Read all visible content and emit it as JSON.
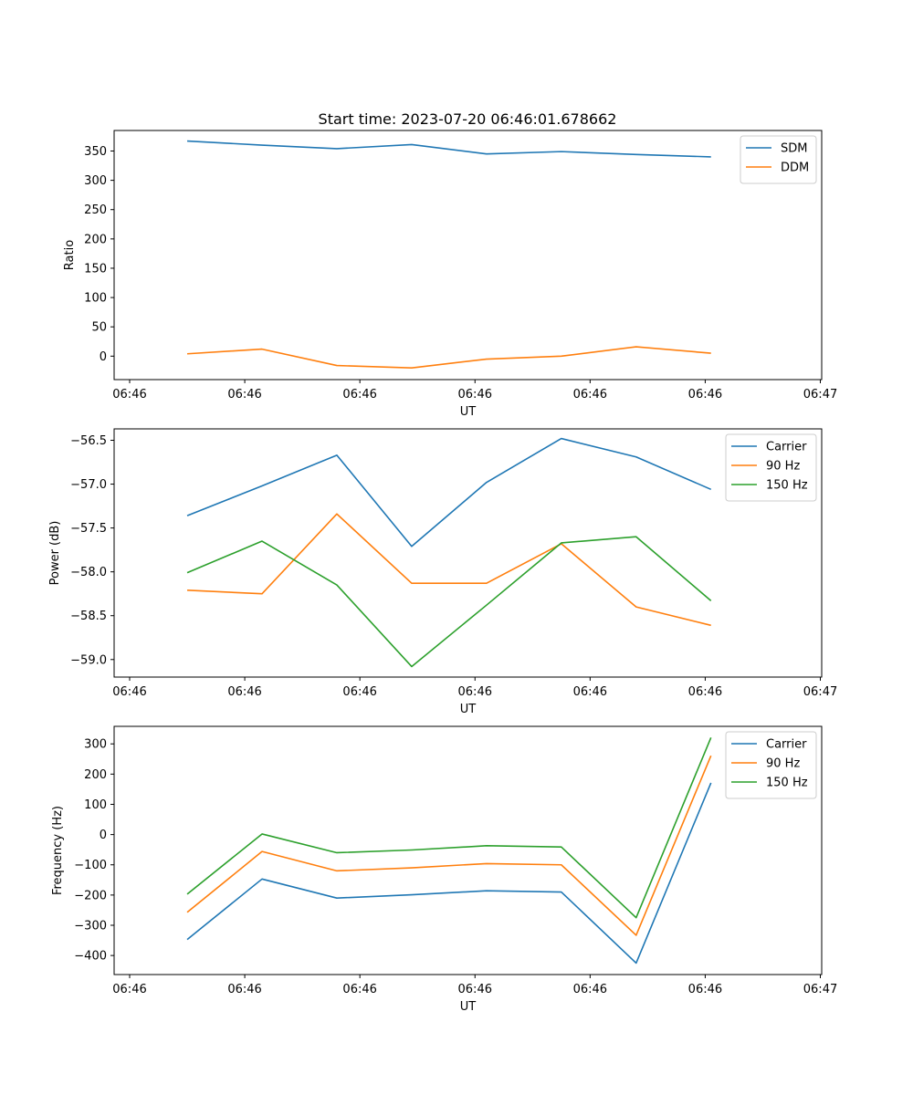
{
  "figure_title": "Start time: 2023-07-20 06:46:01.678662",
  "chart_data": [
    {
      "type": "line",
      "title": "Start time: 2023-07-20 06:46:01.678662",
      "xlabel": "UT",
      "ylabel": "Ratio",
      "x_ticks": [
        "06:46",
        "06:46",
        "06:46",
        "06:46",
        "06:46",
        "06:46",
        "06:47"
      ],
      "x": [
        0.5,
        1.15,
        1.8,
        2.45,
        3.1,
        3.75,
        4.4,
        5.05
      ],
      "xlim": [
        0,
        6
      ],
      "ylim": [
        -40,
        385
      ],
      "y_ticks": [
        0,
        50,
        100,
        150,
        200,
        250,
        300,
        350
      ],
      "legend": "top-right",
      "series": [
        {
          "name": "SDM",
          "color": "#1f77b4",
          "values": [
            367,
            360,
            354,
            361,
            345,
            349,
            344,
            340
          ]
        },
        {
          "name": "DDM",
          "color": "#ff7f0e",
          "values": [
            4,
            12,
            -16,
            -20,
            -5,
            0,
            16,
            5
          ]
        }
      ]
    },
    {
      "type": "line",
      "title": "",
      "xlabel": "UT",
      "ylabel": "Power (dB)",
      "x_ticks": [
        "06:46",
        "06:46",
        "06:46",
        "06:46",
        "06:46",
        "06:46",
        "06:47"
      ],
      "x": [
        0.5,
        1.15,
        1.8,
        2.45,
        3.1,
        3.75,
        4.4,
        5.05
      ],
      "xlim": [
        0,
        6
      ],
      "ylim": [
        -59.2,
        -56.37
      ],
      "y_ticks": [
        -59.0,
        -58.5,
        -58.0,
        -57.5,
        -57.0,
        -56.5
      ],
      "y_tick_labels": [
        "−59.0",
        "−58.5",
        "−58.0",
        "−57.5",
        "−57.0",
        "−56.5"
      ],
      "legend": "top-right",
      "series": [
        {
          "name": "Carrier",
          "color": "#1f77b4",
          "values": [
            -57.36,
            -57.02,
            -56.67,
            -57.71,
            -56.98,
            -56.48,
            -56.69,
            -57.06
          ]
        },
        {
          "name": "90 Hz",
          "color": "#ff7f0e",
          "values": [
            -58.21,
            -58.25,
            -57.34,
            -58.13,
            -58.13,
            -57.68,
            -58.4,
            -58.61
          ]
        },
        {
          "name": "150 Hz",
          "color": "#2ca02c",
          "values": [
            -58.01,
            -57.65,
            -58.15,
            -59.08,
            -58.38,
            -57.67,
            -57.6,
            -58.33
          ]
        }
      ]
    },
    {
      "type": "line",
      "title": "",
      "xlabel": "UT",
      "ylabel": "Frequency (Hz)",
      "x_ticks": [
        "06:46",
        "06:46",
        "06:46",
        "06:46",
        "06:46",
        "06:46",
        "06:47"
      ],
      "x": [
        0.5,
        1.15,
        1.8,
        2.45,
        3.1,
        3.75,
        4.4,
        5.05
      ],
      "xlim": [
        0,
        6
      ],
      "ylim": [
        -463,
        358
      ],
      "y_ticks": [
        -400,
        -300,
        -200,
        -100,
        0,
        100,
        200,
        300
      ],
      "y_tick_labels": [
        "−400",
        "−300",
        "−200",
        "−100",
        "0",
        "100",
        "200",
        "300"
      ],
      "legend": "top-right",
      "series": [
        {
          "name": "Carrier",
          "color": "#1f77b4",
          "values": [
            -347,
            -147,
            -210,
            -199,
            -186,
            -190,
            -425,
            171
          ]
        },
        {
          "name": "90 Hz",
          "color": "#ff7f0e",
          "values": [
            -257,
            -56,
            -120,
            -110,
            -96,
            -100,
            -333,
            261
          ]
        },
        {
          "name": "150 Hz",
          "color": "#2ca02c",
          "values": [
            -197,
            2,
            -60,
            -51,
            -37,
            -41,
            -275,
            321
          ]
        }
      ]
    }
  ]
}
